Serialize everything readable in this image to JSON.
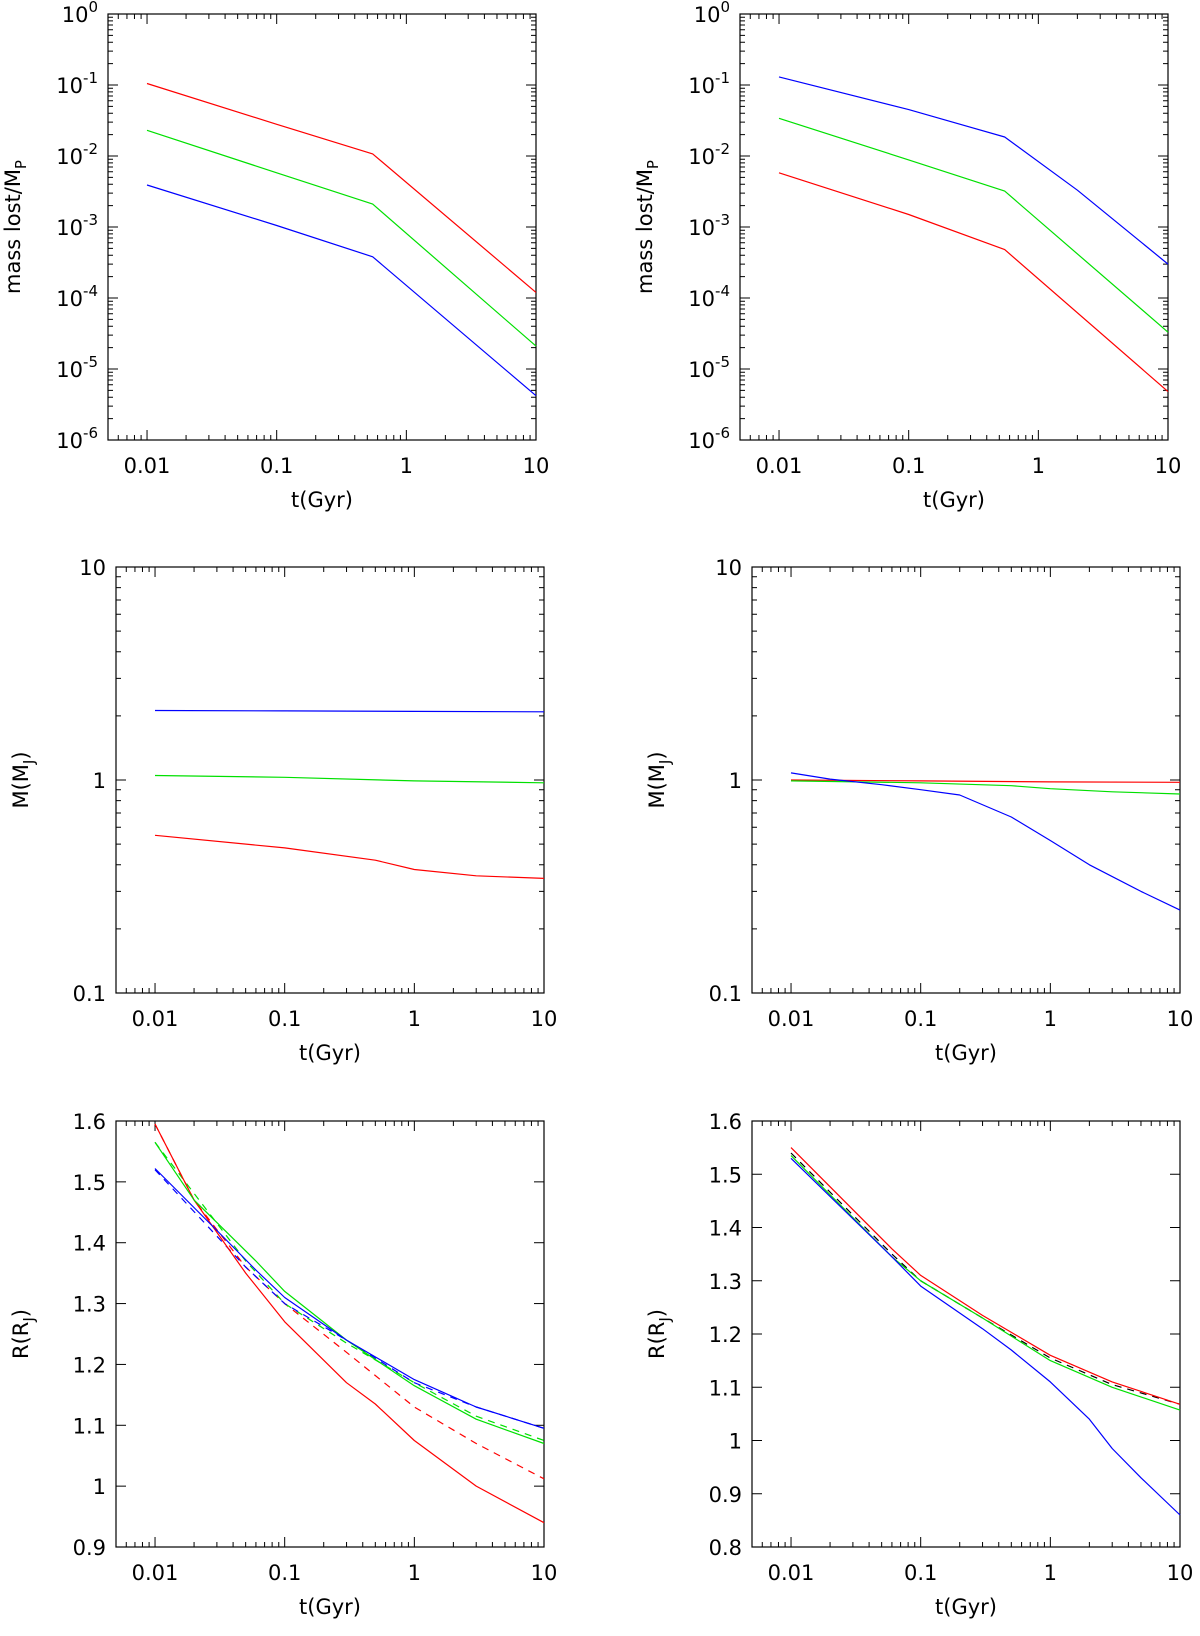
{
  "colors": {
    "red": "#ff0000",
    "green": "#00e000",
    "blue": "#0000ff",
    "black": "#000000"
  },
  "chart_data": [
    {
      "id": "mass-lost-left",
      "type": "line",
      "xlabel": "t(Gyr)",
      "ylabel": {
        "main": "mass lost/M",
        "sub": "P"
      },
      "xscale": "log",
      "yscale": "log",
      "xlim": [
        0.005,
        10
      ],
      "ylim": [
        1e-06,
        1
      ],
      "xticks": [
        {
          "v": 0.01,
          "label": "0.01"
        },
        {
          "v": 0.1,
          "label": "0.1"
        },
        {
          "v": 1,
          "label": "1"
        },
        {
          "v": 10,
          "label": "10"
        }
      ],
      "yticks": [
        {
          "v": 1e-06,
          "base": "10",
          "exp": "-6"
        },
        {
          "v": 1e-05,
          "base": "10",
          "exp": "-5"
        },
        {
          "v": 0.0001,
          "base": "10",
          "exp": "-4"
        },
        {
          "v": 0.001,
          "base": "10",
          "exp": "-3"
        },
        {
          "v": 0.01,
          "base": "10",
          "exp": "-2"
        },
        {
          "v": 0.1,
          "base": "10",
          "exp": "-1"
        },
        {
          "v": 1,
          "base": "10",
          "exp": "0"
        }
      ],
      "series": [
        {
          "color": "red",
          "points": [
            [
              0.01,
              0.105
            ],
            [
              0.1,
              0.028
            ],
            [
              0.55,
              0.0107
            ],
            [
              10,
              0.00012
            ]
          ]
        },
        {
          "color": "green",
          "points": [
            [
              0.01,
              0.023
            ],
            [
              0.1,
              0.0058
            ],
            [
              0.55,
              0.0021
            ],
            [
              10,
              2.1e-05
            ]
          ]
        },
        {
          "color": "blue",
          "points": [
            [
              0.01,
              0.0039
            ],
            [
              0.1,
              0.00105
            ],
            [
              0.55,
              0.00038
            ],
            [
              10,
              4.2e-06
            ]
          ]
        }
      ]
    },
    {
      "id": "mass-lost-right",
      "type": "line",
      "xlabel": "t(Gyr)",
      "ylabel": {
        "main": "mass lost/M",
        "sub": "P"
      },
      "xscale": "log",
      "yscale": "log",
      "xlim": [
        0.005,
        10
      ],
      "ylim": [
        1e-06,
        1
      ],
      "xticks": [
        {
          "v": 0.01,
          "label": "0.01"
        },
        {
          "v": 0.1,
          "label": "0.1"
        },
        {
          "v": 1,
          "label": "1"
        },
        {
          "v": 10,
          "label": "10"
        }
      ],
      "yticks": [
        {
          "v": 1e-06,
          "base": "10",
          "exp": "-6"
        },
        {
          "v": 1e-05,
          "base": "10",
          "exp": "-5"
        },
        {
          "v": 0.0001,
          "base": "10",
          "exp": "-4"
        },
        {
          "v": 0.001,
          "base": "10",
          "exp": "-3"
        },
        {
          "v": 0.01,
          "base": "10",
          "exp": "-2"
        },
        {
          "v": 0.1,
          "base": "10",
          "exp": "-1"
        },
        {
          "v": 1,
          "base": "10",
          "exp": "0"
        }
      ],
      "series": [
        {
          "color": "blue",
          "points": [
            [
              0.01,
              0.13
            ],
            [
              0.1,
              0.045
            ],
            [
              0.55,
              0.0185
            ],
            [
              2,
              0.0033
            ],
            [
              10,
              0.0003
            ]
          ]
        },
        {
          "color": "green",
          "points": [
            [
              0.01,
              0.034
            ],
            [
              0.1,
              0.0088
            ],
            [
              0.55,
              0.0032
            ],
            [
              10,
              3.3e-05
            ]
          ]
        },
        {
          "color": "red",
          "points": [
            [
              0.01,
              0.0058
            ],
            [
              0.1,
              0.0015
            ],
            [
              0.55,
              0.00048
            ],
            [
              10,
              4.8e-06
            ]
          ]
        }
      ]
    },
    {
      "id": "mass-left",
      "type": "line",
      "xlabel": "t(Gyr)",
      "ylabel": {
        "main": "M(M",
        "sub": "J",
        "tail": ")"
      },
      "xscale": "log",
      "yscale": "log",
      "xlim": [
        0.005,
        10
      ],
      "ylim": [
        0.1,
        10
      ],
      "xticks": [
        {
          "v": 0.01,
          "label": "0.01"
        },
        {
          "v": 0.1,
          "label": "0.1"
        },
        {
          "v": 1,
          "label": "1"
        },
        {
          "v": 10,
          "label": "10"
        }
      ],
      "yticks": [
        {
          "v": 0.1,
          "label": "0.1"
        },
        {
          "v": 1,
          "label": "1"
        },
        {
          "v": 10,
          "label": "10"
        }
      ],
      "series": [
        {
          "color": "blue",
          "points": [
            [
              0.01,
              2.12
            ],
            [
              0.1,
              2.11
            ],
            [
              1,
              2.1
            ],
            [
              10,
              2.09
            ]
          ]
        },
        {
          "color": "green",
          "points": [
            [
              0.01,
              1.05
            ],
            [
              0.1,
              1.03
            ],
            [
              1,
              0.99
            ],
            [
              10,
              0.97
            ]
          ]
        },
        {
          "color": "red",
          "points": [
            [
              0.01,
              0.55
            ],
            [
              0.1,
              0.48
            ],
            [
              0.5,
              0.42
            ],
            [
              1,
              0.38
            ],
            [
              3,
              0.355
            ],
            [
              10,
              0.345
            ]
          ]
        }
      ]
    },
    {
      "id": "mass-right",
      "type": "line",
      "xlabel": "t(Gyr)",
      "ylabel": {
        "main": "M(M",
        "sub": "J",
        "tail": ")"
      },
      "xscale": "log",
      "yscale": "log",
      "xlim": [
        0.005,
        10
      ],
      "ylim": [
        0.1,
        10
      ],
      "xticks": [
        {
          "v": 0.01,
          "label": "0.01"
        },
        {
          "v": 0.1,
          "label": "0.1"
        },
        {
          "v": 1,
          "label": "1"
        },
        {
          "v": 10,
          "label": "10"
        }
      ],
      "yticks": [
        {
          "v": 0.1,
          "label": "0.1"
        },
        {
          "v": 1,
          "label": "1"
        },
        {
          "v": 10,
          "label": "10"
        }
      ],
      "series": [
        {
          "color": "red",
          "points": [
            [
              0.01,
              1.0
            ],
            [
              0.1,
              0.99
            ],
            [
              1,
              0.98
            ],
            [
              10,
              0.975
            ]
          ]
        },
        {
          "color": "green",
          "points": [
            [
              0.01,
              0.99
            ],
            [
              0.1,
              0.97
            ],
            [
              0.5,
              0.94
            ],
            [
              1,
              0.91
            ],
            [
              3,
              0.88
            ],
            [
              10,
              0.86
            ]
          ]
        },
        {
          "color": "blue",
          "points": [
            [
              0.01,
              1.08
            ],
            [
              0.02,
              1.01
            ],
            [
              0.05,
              0.95
            ],
            [
              0.1,
              0.9
            ],
            [
              0.2,
              0.85
            ],
            [
              0.5,
              0.67
            ],
            [
              1,
              0.52
            ],
            [
              2,
              0.4
            ],
            [
              5,
              0.3
            ],
            [
              10,
              0.245
            ]
          ]
        }
      ]
    },
    {
      "id": "radius-left",
      "type": "line",
      "xlabel": "t(Gyr)",
      "ylabel": {
        "main": "R(R",
        "sub": "J",
        "tail": ")"
      },
      "xscale": "log",
      "yscale": "linear",
      "xlim": [
        0.005,
        10
      ],
      "ylim": [
        0.9,
        1.6
      ],
      "xticks": [
        {
          "v": 0.01,
          "label": "0.01"
        },
        {
          "v": 0.1,
          "label": "0.1"
        },
        {
          "v": 1,
          "label": "1"
        },
        {
          "v": 10,
          "label": "10"
        }
      ],
      "yticks": [
        {
          "v": 0.9,
          "label": "0.9"
        },
        {
          "v": 1.0,
          "label": "1"
        },
        {
          "v": 1.1,
          "label": "1.1"
        },
        {
          "v": 1.2,
          "label": "1.2"
        },
        {
          "v": 1.3,
          "label": "1.3"
        },
        {
          "v": 1.4,
          "label": "1.4"
        },
        {
          "v": 1.5,
          "label": "1.5"
        },
        {
          "v": 1.6,
          "label": "1.6"
        }
      ],
      "series": [
        {
          "color": "red",
          "dashed": true,
          "points": [
            [
              0.01,
              1.595
            ],
            [
              0.02,
              1.47
            ],
            [
              0.05,
              1.36
            ],
            [
              0.1,
              1.3
            ],
            [
              0.3,
              1.22
            ],
            [
              1,
              1.13
            ],
            [
              3,
              1.07
            ],
            [
              10,
              1.012
            ]
          ]
        },
        {
          "color": "green",
          "dashed": true,
          "points": [
            [
              0.01,
              1.565
            ],
            [
              0.05,
              1.37
            ],
            [
              0.1,
              1.3
            ],
            [
              0.3,
              1.235
            ],
            [
              1,
              1.17
            ],
            [
              3,
              1.115
            ],
            [
              10,
              1.075
            ]
          ]
        },
        {
          "color": "blue",
          "dashed": true,
          "points": [
            [
              0.01,
              1.52
            ],
            [
              0.05,
              1.36
            ],
            [
              0.1,
              1.3
            ],
            [
              0.3,
              1.24
            ],
            [
              1,
              1.17
            ],
            [
              3,
              1.13
            ],
            [
              10,
              1.095
            ]
          ]
        },
        {
          "color": "red",
          "points": [
            [
              0.01,
              1.595
            ],
            [
              0.02,
              1.47
            ],
            [
              0.05,
              1.35
            ],
            [
              0.1,
              1.27
            ],
            [
              0.3,
              1.17
            ],
            [
              0.5,
              1.135
            ],
            [
              1,
              1.075
            ],
            [
              3,
              1.0
            ],
            [
              10,
              0.94
            ]
          ]
        },
        {
          "color": "green",
          "points": [
            [
              0.01,
              1.565
            ],
            [
              0.02,
              1.47
            ],
            [
              0.06,
              1.37
            ],
            [
              0.1,
              1.32
            ],
            [
              0.3,
              1.24
            ],
            [
              1,
              1.165
            ],
            [
              3,
              1.11
            ],
            [
              10,
              1.07
            ]
          ]
        },
        {
          "color": "blue",
          "points": [
            [
              0.01,
              1.522
            ],
            [
              0.03,
              1.42
            ],
            [
              0.06,
              1.355
            ],
            [
              0.1,
              1.31
            ],
            [
              0.3,
              1.24
            ],
            [
              1,
              1.175
            ],
            [
              3,
              1.13
            ],
            [
              10,
              1.095
            ]
          ]
        }
      ]
    },
    {
      "id": "radius-right",
      "type": "line",
      "xlabel": "t(Gyr)",
      "ylabel": {
        "main": "R(R",
        "sub": "J",
        "tail": ")"
      },
      "xscale": "log",
      "yscale": "linear",
      "xlim": [
        0.005,
        10
      ],
      "ylim": [
        0.8,
        1.6
      ],
      "xticks": [
        {
          "v": 0.01,
          "label": "0.01"
        },
        {
          "v": 0.1,
          "label": "0.1"
        },
        {
          "v": 1,
          "label": "1"
        },
        {
          "v": 10,
          "label": "10"
        }
      ],
      "yticks": [
        {
          "v": 0.8,
          "label": "0.8"
        },
        {
          "v": 0.9,
          "label": "0.9"
        },
        {
          "v": 1.0,
          "label": "1"
        },
        {
          "v": 1.1,
          "label": "1.1"
        },
        {
          "v": 1.2,
          "label": "1.2"
        },
        {
          "v": 1.3,
          "label": "1.3"
        },
        {
          "v": 1.4,
          "label": "1.4"
        },
        {
          "v": 1.5,
          "label": "1.5"
        },
        {
          "v": 1.6,
          "label": "1.6"
        }
      ],
      "series": [
        {
          "color": "black",
          "dashed": true,
          "points": [
            [
              0.01,
              1.54
            ],
            [
              0.06,
              1.35
            ],
            [
              0.1,
              1.3
            ],
            [
              0.3,
              1.23
            ],
            [
              1,
              1.155
            ],
            [
              3,
              1.105
            ],
            [
              10,
              1.068
            ]
          ]
        },
        {
          "color": "red",
          "points": [
            [
              0.01,
              1.55
            ],
            [
              0.06,
              1.36
            ],
            [
              0.1,
              1.31
            ],
            [
              0.3,
              1.235
            ],
            [
              1,
              1.16
            ],
            [
              3,
              1.11
            ],
            [
              10,
              1.068
            ]
          ]
        },
        {
          "color": "green",
          "points": [
            [
              0.01,
              1.535
            ],
            [
              0.06,
              1.345
            ],
            [
              0.1,
              1.3
            ],
            [
              0.3,
              1.23
            ],
            [
              1,
              1.15
            ],
            [
              3,
              1.1
            ],
            [
              10,
              1.057
            ]
          ]
        },
        {
          "color": "blue",
          "points": [
            [
              0.01,
              1.53
            ],
            [
              0.06,
              1.345
            ],
            [
              0.1,
              1.29
            ],
            [
              0.3,
              1.21
            ],
            [
              0.5,
              1.17
            ],
            [
              1,
              1.11
            ],
            [
              2,
              1.04
            ],
            [
              3,
              0.985
            ],
            [
              5,
              0.93
            ],
            [
              10,
              0.86
            ]
          ]
        }
      ]
    }
  ]
}
